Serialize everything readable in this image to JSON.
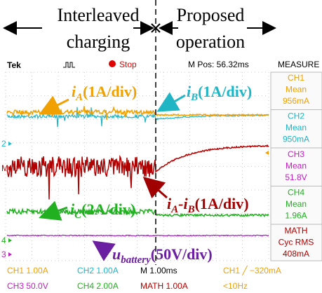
{
  "header": {
    "left": [
      "Interleaved",
      "charging"
    ],
    "right": [
      "Proposed",
      "operation"
    ]
  },
  "scope": {
    "brand": "Tek",
    "state": "Stop",
    "position": "M Pos: 56.32ms",
    "panel_title": "MEASURE",
    "markers": [
      "2",
      "M",
      "4",
      "3"
    ],
    "measures": [
      {
        "channel": "CH1",
        "kind": "Mean",
        "value": "956mA"
      },
      {
        "channel": "CH2",
        "kind": "Mean",
        "value": "950mA"
      },
      {
        "channel": "CH3",
        "kind": "Mean",
        "value": "51.8V"
      },
      {
        "channel": "CH4",
        "kind": "Mean",
        "value": "1.96A"
      },
      {
        "channel": "MATH",
        "kind": "Cyc RMS",
        "value": "408mA"
      }
    ],
    "status": [
      [
        "CH1 1.00A",
        "CH2 1.00A",
        "M 1.00ms",
        "CH1 ╱ −320mA"
      ],
      [
        "CH3 50.0V",
        "CH4 2.00A",
        "MATH 1.00A",
        "<10Hz"
      ]
    ]
  },
  "labels": [
    {
      "symbol": "i",
      "sub": "A",
      "scale": "(1A/div)"
    },
    {
      "symbol": "i",
      "sub": "B",
      "scale": "(1A/div)"
    },
    {
      "symbol": "i",
      "sub": "A",
      "mid": "-i",
      "sub2": "B",
      "scale": "(1A/div)"
    },
    {
      "symbol": "i",
      "sub": "C",
      "scale": "(2A/div)"
    },
    {
      "symbol": "u",
      "sub": "battery",
      "scale": "(50V/div)"
    }
  ]
}
